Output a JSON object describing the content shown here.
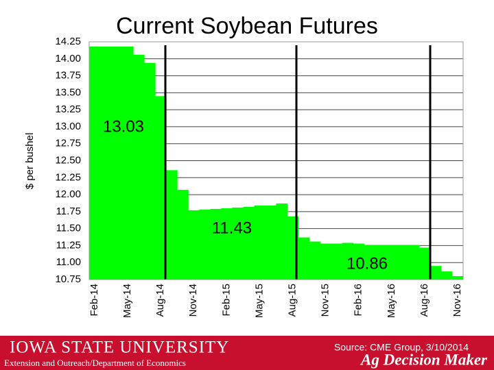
{
  "chart_data": {
    "type": "step-area",
    "title": "Current Soybean Futures",
    "y_label": "$ per bushel",
    "categories": [
      "Feb-14",
      null,
      null,
      "May-14",
      null,
      null,
      "Aug-14",
      null,
      null,
      "Nov-14",
      null,
      null,
      "Feb-15",
      null,
      null,
      "May-15",
      null,
      null,
      "Aug-15",
      null,
      null,
      "Nov-15",
      null,
      null,
      "Feb-16",
      null,
      null,
      "May-16",
      null,
      null,
      "Aug-16",
      null,
      null,
      "Nov-16"
    ],
    "values": [
      14.18,
      14.18,
      14.18,
      14.18,
      14.06,
      13.94,
      13.45,
      12.36,
      12.07,
      11.77,
      11.78,
      11.79,
      11.8,
      11.81,
      11.82,
      11.84,
      11.84,
      11.87,
      11.68,
      11.37,
      11.31,
      11.28,
      11.28,
      11.29,
      11.28,
      11.26,
      11.26,
      11.26,
      11.26,
      11.26,
      11.22,
      10.95,
      10.87,
      10.8
    ],
    "color": "#00ff00",
    "ylim": [
      10.75,
      14.25
    ],
    "yticks": [
      14.25,
      {
        "value": 14,
        "label": "14.00"
      },
      13.75,
      {
        "value": 13.5,
        "label": "13.50"
      },
      13.25,
      {
        "value": 13,
        "label": "13.00"
      },
      12.75,
      {
        "value": 12.5,
        "label": "12.50"
      },
      12.25,
      {
        "value": 12,
        "label": "12.00"
      },
      11.75,
      {
        "value": 11.5,
        "label": "11.50"
      },
      11.25,
      {
        "value": 11,
        "label": "11.00"
      },
      10.75
    ],
    "grid": true,
    "annotations": [
      "13.03",
      "11.43",
      "10.86"
    ]
  },
  "footer": {
    "university": "IOWA STATE UNIVERSITY",
    "department": "Extension and Outreach/Department of Economics",
    "source": "Source: CME Group, 3/10/2014",
    "brand": "Ag Decision Maker"
  }
}
